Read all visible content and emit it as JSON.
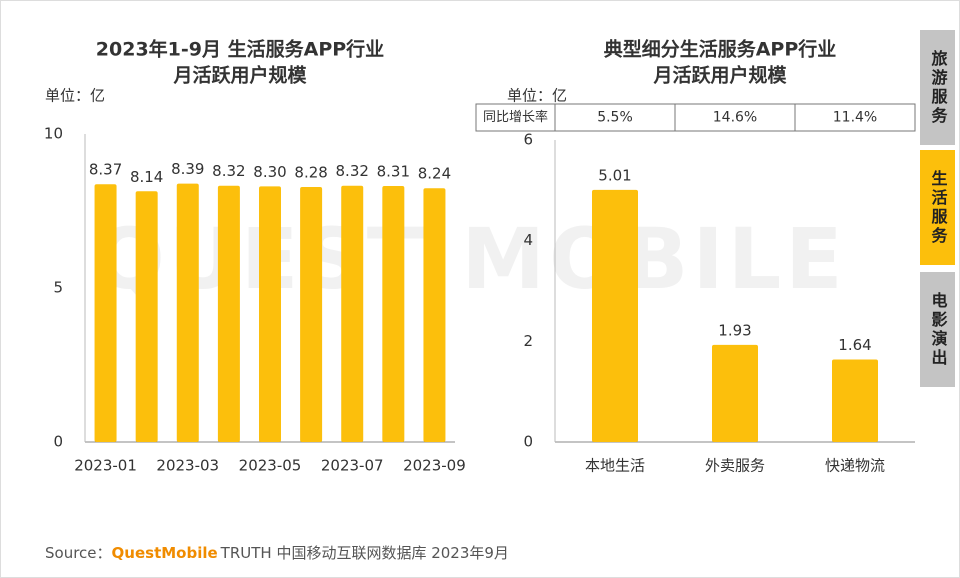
{
  "chart_data": [
    {
      "type": "bar",
      "title": [
        "2023年1-9月 生活服务APP行业",
        "月活跃用户规模"
      ],
      "y_unit": "单位：亿",
      "categories": [
        "2023-01",
        null,
        "2023-03",
        null,
        "2023-05",
        null,
        "2023-07",
        null,
        "2023-09"
      ],
      "values": [
        8.37,
        8.14,
        8.39,
        8.32,
        8.3,
        8.28,
        8.32,
        8.31,
        8.24
      ],
      "value_labels": [
        "8.37",
        "8.14",
        "8.39",
        "8.32",
        "8.30",
        "8.28",
        "8.32",
        "8.31",
        "8.24"
      ],
      "color": "#fcbf0c",
      "ylim": [
        0,
        10
      ],
      "yticks": [
        0,
        5,
        10
      ]
    },
    {
      "type": "bar",
      "title": [
        "典型细分生活服务APP行业",
        "月活跃用户规模"
      ],
      "y_unit": "单位：亿",
      "table": {
        "header": "同比增长率",
        "cells": [
          "5.5%",
          "14.6%",
          "11.4%"
        ]
      },
      "categories": [
        "本地生活",
        "外卖服务",
        "快递物流"
      ],
      "values": [
        5.01,
        1.93,
        1.64
      ],
      "color": "#fcbf0c",
      "ylim": [
        0,
        6
      ],
      "yticks": [
        0,
        2,
        4,
        6
      ]
    }
  ],
  "watermark": "QUEST MOBILE",
  "tabs": [
    {
      "label": "旅游服务",
      "active": false
    },
    {
      "label": "生活服务",
      "active": true
    },
    {
      "label": "电影演出",
      "active": false
    }
  ],
  "source": {
    "prefix": "Source：",
    "brand": "QuestMobile",
    "text": "TRUTH 中国移动互联网数据库 2023年9月"
  }
}
